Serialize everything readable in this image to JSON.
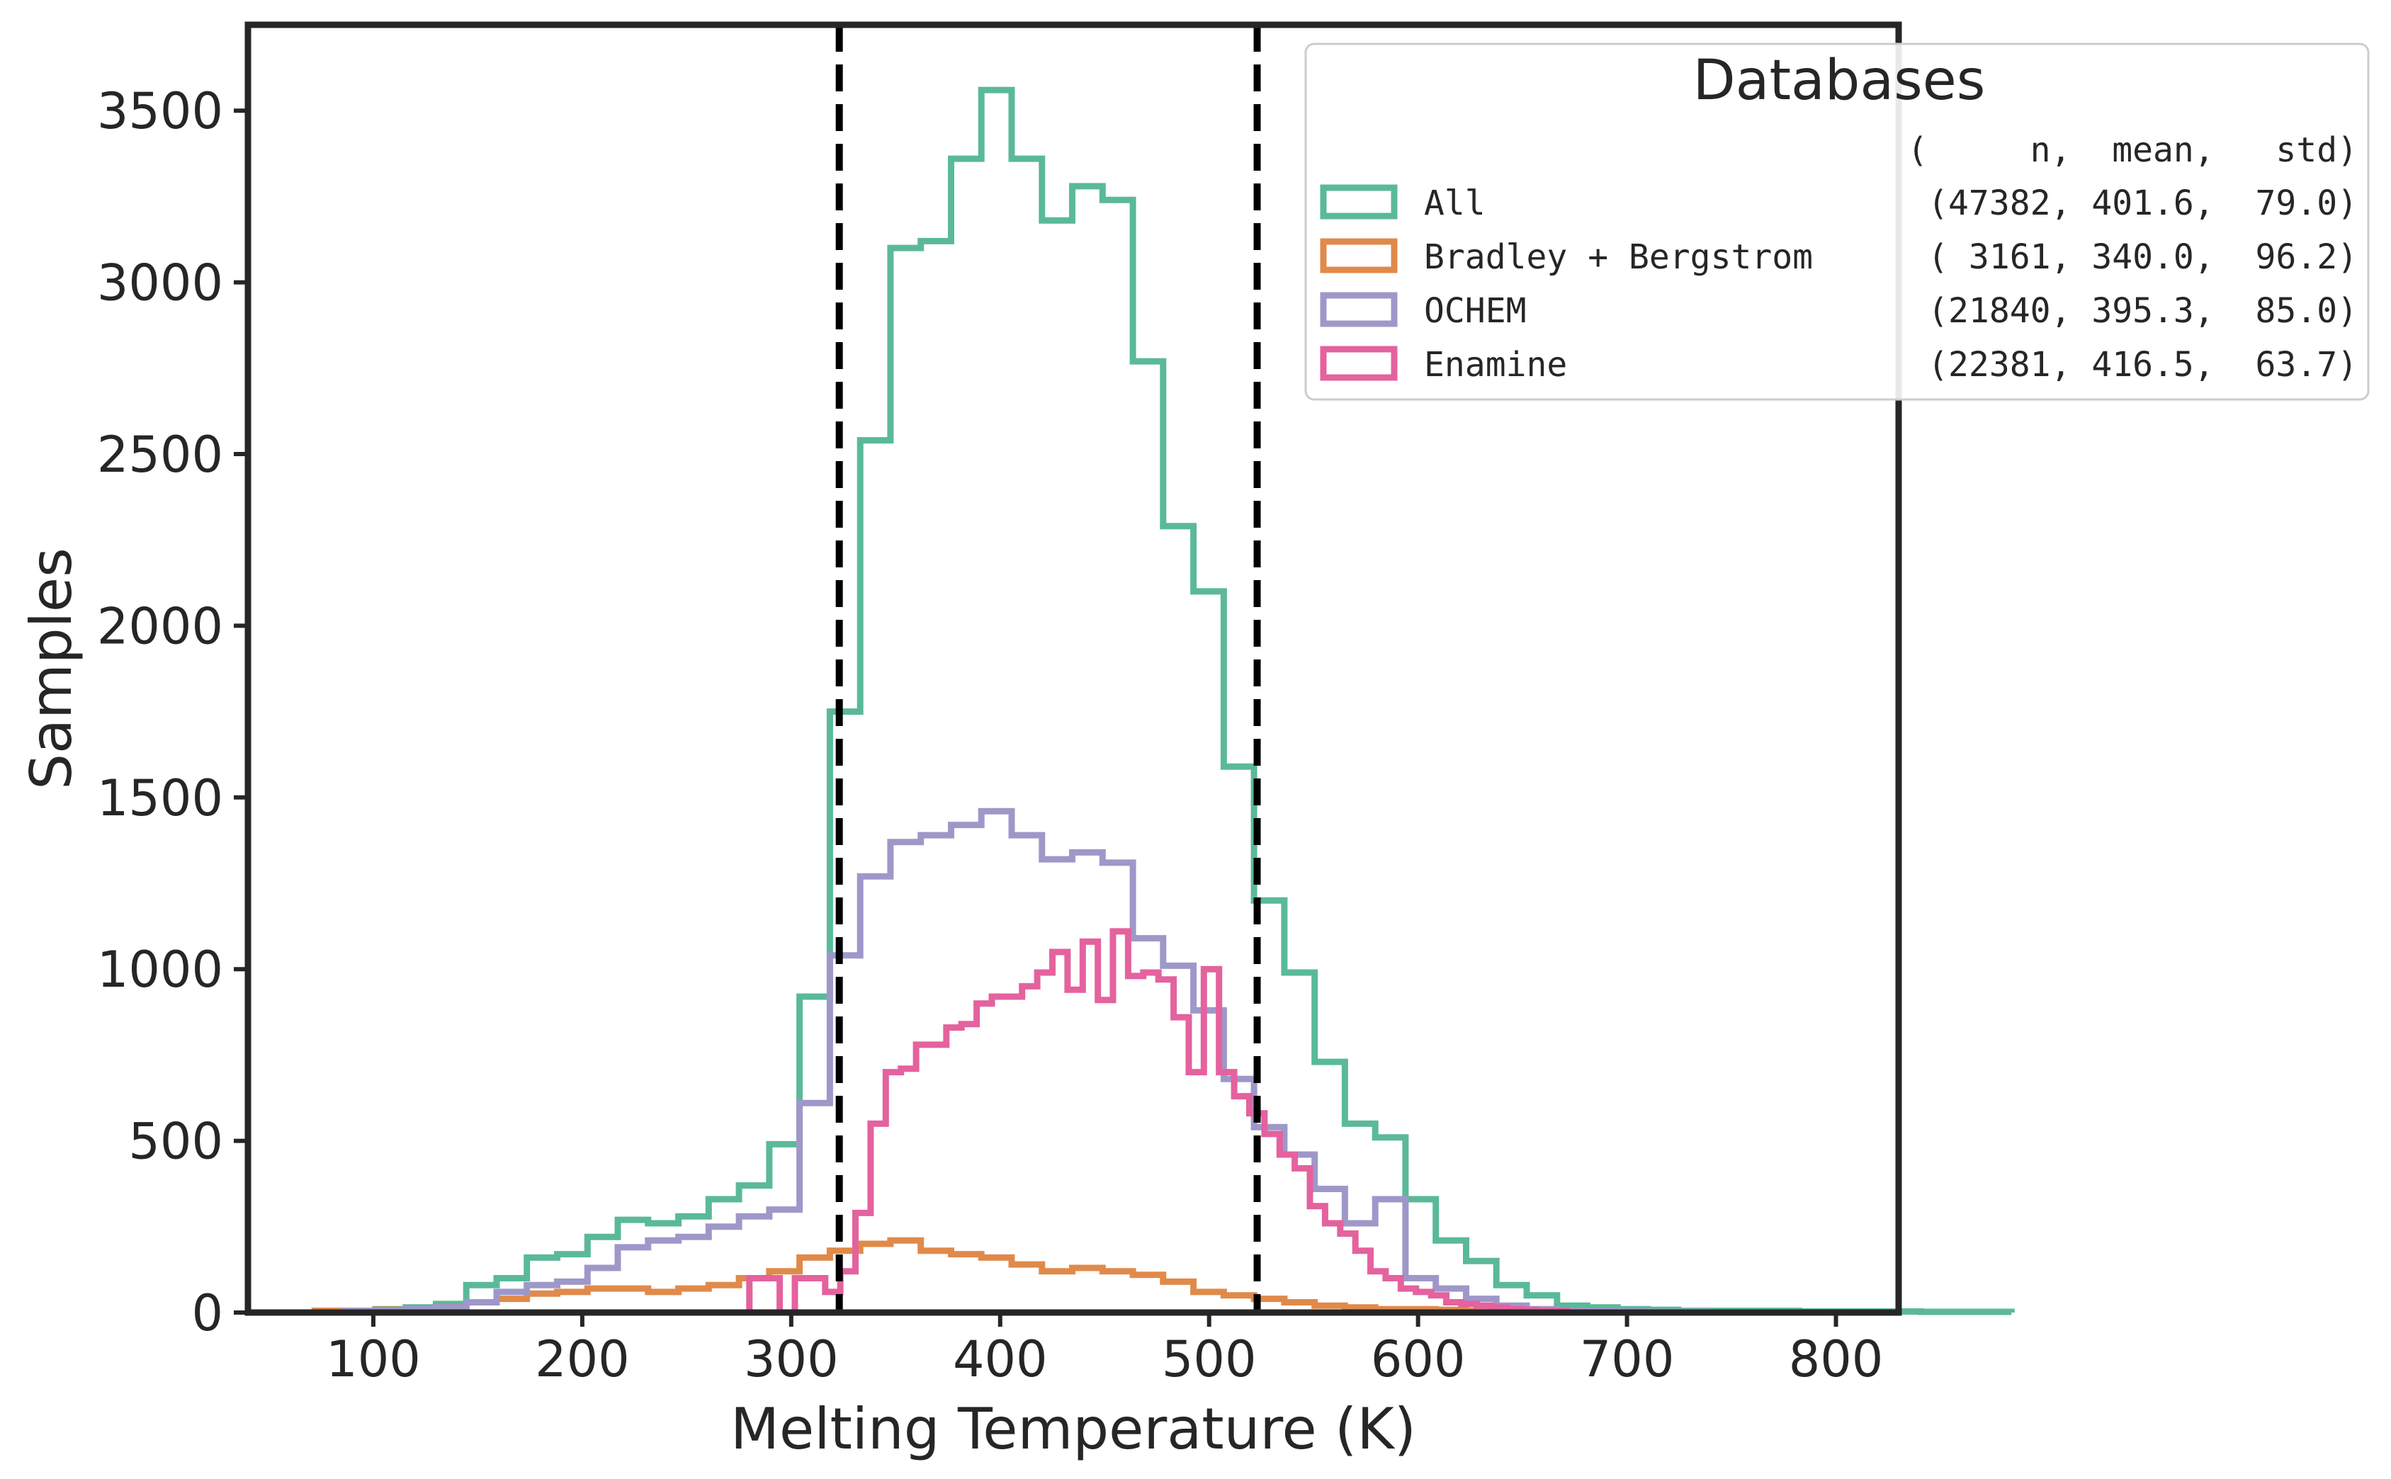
{
  "chart_data": {
    "type": "histogram-step",
    "xlabel": "Melting Temperature (K)",
    "ylabel": "Samples",
    "xlim": [
      40,
      830
    ],
    "ylim": [
      0,
      3750
    ],
    "xticks": [
      100,
      200,
      300,
      400,
      500,
      600,
      700,
      800
    ],
    "yticks": [
      0,
      500,
      1000,
      1500,
      2000,
      2500,
      3000,
      3500
    ],
    "vlines": [
      323,
      523
    ],
    "grid": false,
    "legend": {
      "title": "Databases",
      "placement": "top-right",
      "header": "(     n,  mean,   std)",
      "entries": [
        {
          "label": "All",
          "stats": "(47382, 401.6,  79.0)"
        },
        {
          "label": "Bradley + Bergstrom",
          "stats": "( 3161, 340.0,  96.2)"
        },
        {
          "label": "OCHEM",
          "stats": "(21840, 395.3,  85.0)"
        },
        {
          "label": "Enamine",
          "stats": "(22381, 416.5,  63.7)"
        }
      ]
    },
    "series": [
      {
        "name": "All",
        "color": "#5ab99a",
        "bin_width": 14.5,
        "x0": 72,
        "values": [
          5,
          5,
          10,
          15,
          25,
          80,
          100,
          160,
          170,
          220,
          270,
          260,
          280,
          330,
          370,
          490,
          920,
          1750,
          2540,
          3100,
          3120,
          3360,
          3560,
          3360,
          3180,
          3280,
          3240,
          2770,
          2290,
          2100,
          1590,
          1200,
          990,
          730,
          550,
          510,
          330,
          210,
          150,
          80,
          50,
          20,
          15,
          10,
          8,
          5,
          5,
          5,
          5,
          3,
          3,
          3,
          3,
          2,
          2,
          2
        ]
      },
      {
        "name": "Bradley + Bergstrom",
        "color": "#e08a4a",
        "bin_width": 14.5,
        "x0": 72,
        "values": [
          5,
          5,
          8,
          10,
          15,
          30,
          40,
          55,
          60,
          70,
          70,
          60,
          70,
          80,
          100,
          120,
          160,
          180,
          200,
          210,
          180,
          170,
          160,
          140,
          120,
          130,
          120,
          110,
          90,
          60,
          50,
          40,
          30,
          20,
          15,
          10,
          10,
          8,
          5,
          5,
          5,
          3,
          3,
          2,
          2,
          2
        ]
      },
      {
        "name": "OCHEM",
        "color": "#9e98c9",
        "bin_width": 14.5,
        "x0": 72,
        "values": [
          0,
          5,
          5,
          10,
          15,
          30,
          60,
          80,
          90,
          130,
          190,
          210,
          220,
          250,
          280,
          300,
          610,
          1040,
          1270,
          1370,
          1390,
          1420,
          1460,
          1390,
          1320,
          1340,
          1310,
          1090,
          1010,
          880,
          680,
          540,
          460,
          360,
          260,
          330,
          100,
          70,
          40,
          20,
          10,
          5,
          5,
          3,
          2,
          2
        ]
      },
      {
        "name": "Enamine",
        "color": "#e4629e",
        "bin_width": 7.25,
        "x0": 280,
        "values": [
          100,
          100,
          0,
          100,
          100,
          60,
          120,
          290,
          550,
          700,
          710,
          780,
          780,
          830,
          840,
          900,
          920,
          920,
          950,
          990,
          1050,
          940,
          1080,
          910,
          1110,
          980,
          990,
          970,
          860,
          700,
          1000,
          700,
          630,
          580,
          520,
          460,
          420,
          310,
          260,
          230,
          180,
          120,
          100,
          70,
          60,
          50,
          30,
          25,
          20,
          15,
          10,
          8,
          5,
          5
        ]
      }
    ]
  }
}
